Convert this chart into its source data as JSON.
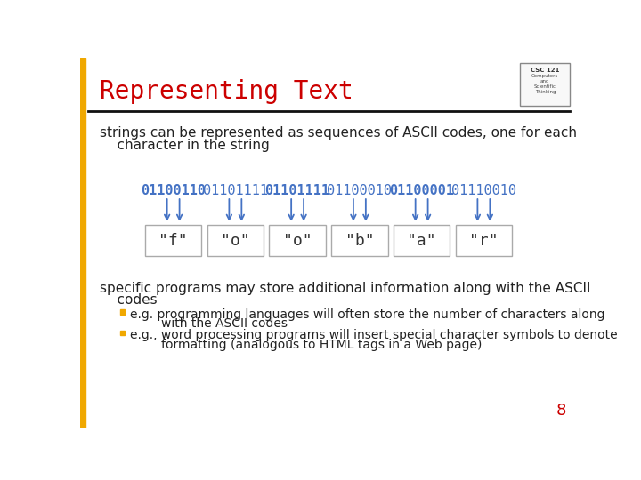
{
  "title": "Representing Text",
  "title_color": "#cc0000",
  "bg_color": "#ffffff",
  "left_bar_color": "#f0a800",
  "left_bar_width": 8,
  "slide_number": "8",
  "slide_number_color": "#cc0000",
  "text1_line1": "strings can be represented as sequences of ASCII codes, one for each",
  "text1_line2": "    character in the string",
  "binary_parts": [
    "01100110",
    "01101111",
    "01101111",
    "01100010",
    "01100001",
    "01110010"
  ],
  "binary_color_normal": "#4472c4",
  "binary_color_bold": "#4472c4",
  "chars": [
    "\"f\"",
    "\"o\"",
    "\"o\"",
    "\"b\"",
    "\"a\"",
    "\"r\""
  ],
  "box_fill": "#ffffff",
  "box_edge": "#aaaaaa",
  "arrow_color": "#4472c4",
  "text2_line1": "specific programs may store additional information along with the ASCII",
  "text2_line2": "    codes",
  "bullet1_line1": "e.g. programming languages will often store the number of characters along",
  "bullet1_line2": "        with the ASCII codes",
  "bullet2_line1": "e.g., word processing programs will insert special character symbols to denote",
  "bullet2_line2": "        formatting (analogous to HTML tags in a Web page)",
  "bullet_color": "#f0a800",
  "title_fontsize": 20,
  "body_fontsize": 11,
  "bullet_fontsize": 10,
  "binary_fontsize": 11,
  "char_fontsize": 13
}
